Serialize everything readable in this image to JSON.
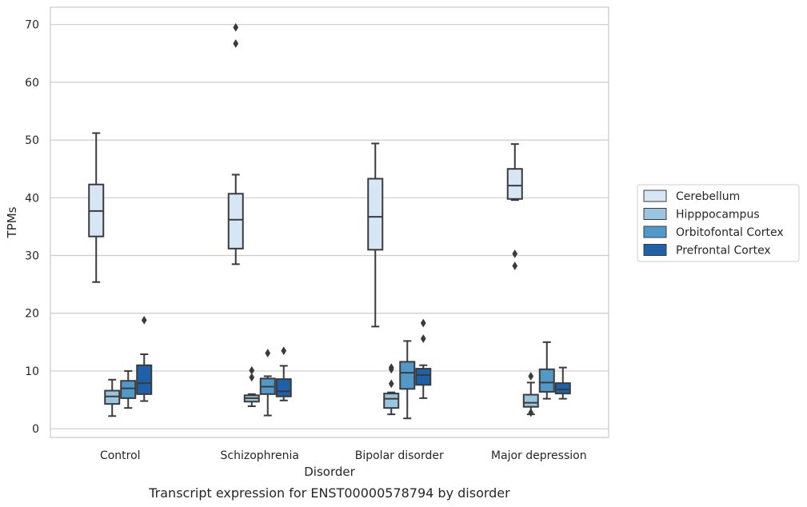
{
  "colors": {
    "Cerebellum": "#d7e6f4",
    "Hipppocampus": "#9ac5e0",
    "Orbitofontal Cortex": "#5099c9",
    "Prefrontal Cortex": "#1f61a8",
    "line": "#3b3b3b",
    "grid": "#cccccc",
    "frame": "#cccccc"
  },
  "chart_data": {
    "type": "box",
    "caption": "Transcript expression for ENST00000578794 by disorder",
    "xlabel": "Disorder",
    "ylabel": "TPMs",
    "ylim": [
      -1.5,
      73
    ],
    "yticks": [
      0,
      10,
      20,
      30,
      40,
      50,
      60,
      70
    ],
    "grid": true,
    "legend_position": "right",
    "categories": [
      "Control",
      "Schizophrenia",
      "Bipolar disorder",
      "Major depression"
    ],
    "series": [
      {
        "name": "Cerebellum",
        "boxes": [
          {
            "whislo": 25.4,
            "q1": 33.3,
            "med": 37.7,
            "q3": 42.3,
            "whishi": 51.2,
            "fliers": []
          },
          {
            "whislo": 28.5,
            "q1": 31.2,
            "med": 36.2,
            "q3": 40.7,
            "whishi": 44.0,
            "fliers": [
              66.7,
              69.5
            ]
          },
          {
            "whislo": 17.7,
            "q1": 31.0,
            "med": 36.7,
            "q3": 43.3,
            "whishi": 49.4,
            "fliers": []
          },
          {
            "whislo": 39.6,
            "q1": 39.8,
            "med": 42.1,
            "q3": 45.0,
            "whishi": 49.3,
            "fliers": [
              28.2,
              30.3
            ]
          }
        ]
      },
      {
        "name": "Hipppocampus",
        "boxes": [
          {
            "whislo": 2.2,
            "q1": 4.3,
            "med": 5.6,
            "q3": 6.6,
            "whishi": 8.5,
            "fliers": []
          },
          {
            "whislo": 3.9,
            "q1": 4.7,
            "med": 5.3,
            "q3": 5.8,
            "whishi": 6.0,
            "fliers": [
              8.9,
              10.1
            ]
          },
          {
            "whislo": 2.5,
            "q1": 3.6,
            "med": 5.2,
            "q3": 6.1,
            "whishi": 6.3,
            "fliers": [
              7.8,
              10.3,
              10.6
            ]
          },
          {
            "whislo": 2.5,
            "q1": 3.8,
            "med": 4.5,
            "q3": 5.9,
            "whishi": 8.0,
            "fliers": [
              2.8,
              9.1
            ]
          }
        ]
      },
      {
        "name": "Orbitofontal Cortex",
        "boxes": [
          {
            "whislo": 3.6,
            "q1": 5.3,
            "med": 7.0,
            "q3": 8.3,
            "whishi": 10.0,
            "fliers": []
          },
          {
            "whislo": 2.3,
            "q1": 6.0,
            "med": 7.3,
            "q3": 8.7,
            "whishi": 9.1,
            "fliers": [
              13.1
            ]
          },
          {
            "whislo": 1.8,
            "q1": 6.9,
            "med": 9.7,
            "q3": 11.6,
            "whishi": 15.2,
            "fliers": []
          },
          {
            "whislo": 5.2,
            "q1": 6.4,
            "med": 8.0,
            "q3": 10.3,
            "whishi": 15.0,
            "fliers": []
          }
        ]
      },
      {
        "name": "Prefrontal Cortex",
        "boxes": [
          {
            "whislo": 4.8,
            "q1": 6.0,
            "med": 7.9,
            "q3": 11.0,
            "whishi": 12.9,
            "fliers": [
              18.8
            ]
          },
          {
            "whislo": 4.9,
            "q1": 5.6,
            "med": 6.5,
            "q3": 8.6,
            "whishi": 10.9,
            "fliers": [
              13.5
            ]
          },
          {
            "whislo": 5.3,
            "q1": 7.6,
            "med": 9.3,
            "q3": 10.4,
            "whishi": 11.0,
            "fliers": [
              15.6,
              18.3
            ]
          },
          {
            "whislo": 5.2,
            "q1": 6.1,
            "med": 6.8,
            "q3": 7.9,
            "whishi": 10.6,
            "fliers": []
          }
        ]
      }
    ]
  }
}
